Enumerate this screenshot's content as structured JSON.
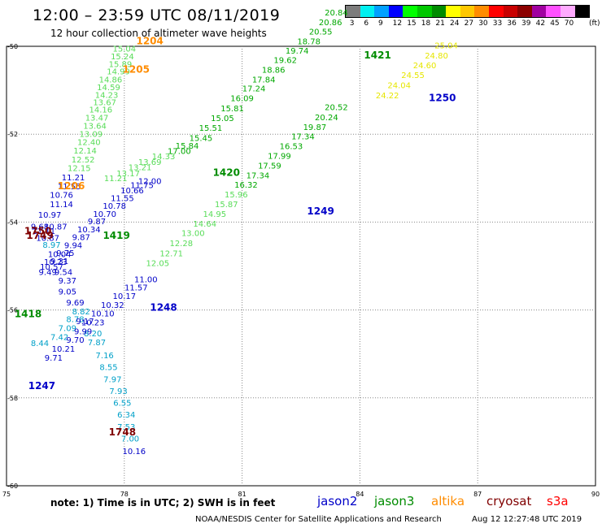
{
  "header": {
    "title": "12:00 – 23:59 UTC 08/11/2019",
    "subtitle": "12 hour collection of altimeter wave heights"
  },
  "legend": {
    "unit": "(ft)",
    "bins": [
      {
        "label": "3",
        "color": "#7c7c7c"
      },
      {
        "label": "6",
        "color": "#00f0f0"
      },
      {
        "label": "9",
        "color": "#00a0ff"
      },
      {
        "label": "12",
        "color": "#0000ff"
      },
      {
        "label": "15",
        "color": "#00ff00"
      },
      {
        "label": "18",
        "color": "#00c800"
      },
      {
        "label": "21",
        "color": "#008c00"
      },
      {
        "label": "24",
        "color": "#ffff00"
      },
      {
        "label": "27",
        "color": "#ffc800"
      },
      {
        "label": "30",
        "color": "#ff8c00"
      },
      {
        "label": "33",
        "color": "#ff0000"
      },
      {
        "label": "36",
        "color": "#c80000"
      },
      {
        "label": "39",
        "color": "#8c0000"
      },
      {
        "label": "42",
        "color": "#a000a0"
      },
      {
        "label": "45",
        "color": "#ff50ff"
      },
      {
        "label": "70",
        "color": "#ffaaff"
      },
      {
        "label": "",
        "color": "#000000"
      }
    ]
  },
  "map": {
    "lon_range": [
      75,
      90
    ],
    "lat_range": [
      -50,
      -60
    ],
    "x_ticks": [
      "75",
      "78",
      "81",
      "84",
      "87",
      "90"
    ],
    "y_ticks": [
      "-50",
      "-52",
      "-54",
      "-56",
      "-58",
      "-60"
    ],
    "grid": "dotted"
  },
  "colors": {
    "jason2": "#0000c8",
    "jason3": "#008c00",
    "altika": "#ff8c00",
    "cryosat": "#800000",
    "s3a": "#ff0000",
    "c6": "#00a0c8",
    "c12": "#0000c8",
    "c15": "#58dc58",
    "c18": "#00a800",
    "c24": "#e6e600",
    "label_j2": "#0000c8",
    "label_j3": "#008c00",
    "label_al": "#ff8c00",
    "label_cr": "#800000"
  },
  "observations": [
    {
      "v": "15.04",
      "lon": 78.0,
      "lat": -50.12,
      "c": "c15"
    },
    {
      "v": "15.24",
      "lon": 77.95,
      "lat": -50.3,
      "c": "c15"
    },
    {
      "v": "15.89",
      "lon": 77.9,
      "lat": -50.47,
      "c": "c15"
    },
    {
      "v": "14.99",
      "lon": 77.85,
      "lat": -50.64,
      "c": "c15"
    },
    {
      "v": "14.86",
      "lon": 77.65,
      "lat": -50.82,
      "c": "c15"
    },
    {
      "v": "14.59",
      "lon": 77.6,
      "lat": -51.0,
      "c": "c15"
    },
    {
      "v": "14.23",
      "lon": 77.55,
      "lat": -51.17,
      "c": "c15"
    },
    {
      "v": "13.67",
      "lon": 77.5,
      "lat": -51.34,
      "c": "c15"
    },
    {
      "v": "14.16",
      "lon": 77.4,
      "lat": -51.51,
      "c": "c15"
    },
    {
      "v": "13.47",
      "lon": 77.3,
      "lat": -51.69,
      "c": "c15"
    },
    {
      "v": "13.64",
      "lon": 77.25,
      "lat": -51.88,
      "c": "c15"
    },
    {
      "v": "13.09",
      "lon": 77.15,
      "lat": -52.06,
      "c": "c15"
    },
    {
      "v": "12.40",
      "lon": 77.1,
      "lat": -52.25,
      "c": "c15"
    },
    {
      "v": "12.14",
      "lon": 77.0,
      "lat": -52.44,
      "c": "c15"
    },
    {
      "v": "12.52",
      "lon": 76.95,
      "lat": -52.64,
      "c": "c15"
    },
    {
      "v": "12.15",
      "lon": 76.85,
      "lat": -52.84,
      "c": "c15"
    },
    {
      "v": "11.21",
      "lon": 76.7,
      "lat": -53.05,
      "c": "c12"
    },
    {
      "v": "11.55",
      "lon": 76.6,
      "lat": -53.25,
      "c": "c12"
    },
    {
      "v": "10.76",
      "lon": 76.4,
      "lat": -53.45,
      "c": "c12"
    },
    {
      "v": "11.14",
      "lon": 76.4,
      "lat": -53.66,
      "c": "c12"
    },
    {
      "v": "10.97",
      "lon": 76.1,
      "lat": -53.9,
      "c": "c12"
    },
    {
      "v": "9.68",
      "lon": 75.85,
      "lat": -54.17,
      "c": "c12"
    },
    {
      "v": "10.87",
      "lon": 76.25,
      "lat": -54.17,
      "c": "c12"
    },
    {
      "v": "11.11",
      "lon": 75.95,
      "lat": -54.27,
      "c": "c12"
    },
    {
      "v": "10.87",
      "lon": 76.05,
      "lat": -54.43,
      "c": "c12"
    },
    {
      "v": "8.97",
      "lon": 76.15,
      "lat": -54.58,
      "c": "c6"
    },
    {
      "v": "10.04",
      "lon": 76.35,
      "lat": -54.8,
      "c": "c12"
    },
    {
      "v": "10.23",
      "lon": 76.25,
      "lat": -54.97,
      "c": "c12"
    },
    {
      "v": "10.57",
      "lon": 76.15,
      "lat": -55.08,
      "c": "c12"
    },
    {
      "v": "9.49",
      "lon": 76.05,
      "lat": -55.2,
      "c": "c12"
    },
    {
      "v": "9.54",
      "lon": 76.45,
      "lat": -55.2,
      "c": "c12"
    },
    {
      "v": "9.37",
      "lon": 76.55,
      "lat": -55.4,
      "c": "c12"
    },
    {
      "v": "9.05",
      "lon": 76.55,
      "lat": -55.65,
      "c": "c12"
    },
    {
      "v": "9.69",
      "lon": 76.75,
      "lat": -55.9,
      "c": "c12"
    },
    {
      "v": "8.82",
      "lon": 76.9,
      "lat": -56.1,
      "c": "c6"
    },
    {
      "v": "8.78",
      "lon": 76.75,
      "lat": -56.28,
      "c": "c6"
    },
    {
      "v": "9.17",
      "lon": 77.0,
      "lat": -56.32,
      "c": "c12"
    },
    {
      "v": "7.09",
      "lon": 76.55,
      "lat": -56.48,
      "c": "c6"
    },
    {
      "v": "7.42",
      "lon": 76.35,
      "lat": -56.68,
      "c": "c6"
    },
    {
      "v": "8.44",
      "lon": 75.85,
      "lat": -56.82,
      "c": "c6"
    },
    {
      "v": "8.20",
      "lon": 77.2,
      "lat": -56.6,
      "c": "c6"
    },
    {
      "v": "7.87",
      "lon": 77.3,
      "lat": -56.8,
      "c": "c6"
    },
    {
      "v": "7.16",
      "lon": 77.5,
      "lat": -57.1,
      "c": "c6"
    },
    {
      "v": "8.55",
      "lon": 77.6,
      "lat": -57.37,
      "c": "c6"
    },
    {
      "v": "7.97",
      "lon": 77.7,
      "lat": -57.64,
      "c": "c6"
    },
    {
      "v": "7.93",
      "lon": 77.85,
      "lat": -57.91,
      "c": "c6"
    },
    {
      "v": "6.55",
      "lon": 77.95,
      "lat": -58.18,
      "c": "c6"
    },
    {
      "v": "6.34",
      "lon": 78.05,
      "lat": -58.45,
      "c": "c6"
    },
    {
      "v": "7.53",
      "lon": 78.05,
      "lat": -58.72,
      "c": "c6"
    },
    {
      "v": "7.00",
      "lon": 78.15,
      "lat": -58.99,
      "c": "c6"
    },
    {
      "v": "10.16",
      "lon": 78.25,
      "lat": -59.28,
      "c": "c12"
    },
    {
      "v": "11.21",
      "lon": 77.78,
      "lat": -53.07,
      "c": "c15"
    },
    {
      "v": "13.17",
      "lon": 78.1,
      "lat": -52.96,
      "c": "c15"
    },
    {
      "v": "13.21",
      "lon": 78.4,
      "lat": -52.82,
      "c": "c15"
    },
    {
      "v": "13.69",
      "lon": 78.65,
      "lat": -52.7,
      "c": "c15"
    },
    {
      "v": "14.33",
      "lon": 79.0,
      "lat": -52.57,
      "c": "c15"
    },
    {
      "v": "17.00",
      "lon": 79.4,
      "lat": -52.45,
      "c": "c18"
    },
    {
      "v": "15.84",
      "lon": 79.6,
      "lat": -52.33,
      "c": "c18"
    },
    {
      "v": "15.45",
      "lon": 79.95,
      "lat": -52.15,
      "c": "c18"
    },
    {
      "v": "15.51",
      "lon": 80.2,
      "lat": -51.92,
      "c": "c18"
    },
    {
      "v": "15.05",
      "lon": 80.5,
      "lat": -51.7,
      "c": "c18"
    },
    {
      "v": "15.81",
      "lon": 80.75,
      "lat": -51.48,
      "c": "c18"
    },
    {
      "v": "16.09",
      "lon": 81.0,
      "lat": -51.25,
      "c": "c18"
    },
    {
      "v": "17.24",
      "lon": 81.3,
      "lat": -51.03,
      "c": "c18"
    },
    {
      "v": "17.84",
      "lon": 81.55,
      "lat": -50.82,
      "c": "c18"
    },
    {
      "v": "18.86",
      "lon": 81.8,
      "lat": -50.6,
      "c": "c18"
    },
    {
      "v": "19.62",
      "lon": 82.1,
      "lat": -50.38,
      "c": "c18"
    },
    {
      "v": "19.74",
      "lon": 82.4,
      "lat": -50.17,
      "c": "c18"
    },
    {
      "v": "18.78",
      "lon": 82.7,
      "lat": -49.95,
      "c": "c18"
    },
    {
      "v": "20.55",
      "lon": 83.0,
      "lat": -49.73,
      "c": "c18"
    },
    {
      "v": "20.86",
      "lon": 83.25,
      "lat": -49.52,
      "c": "c18"
    },
    {
      "v": "20.84",
      "lon": 83.4,
      "lat": -49.3,
      "c": "c18"
    },
    {
      "v": "12.00",
      "lon": 78.65,
      "lat": -53.13,
      "c": "c12"
    },
    {
      "v": "11.75",
      "lon": 78.45,
      "lat": -53.23,
      "c": "c12"
    },
    {
      "v": "10.66",
      "lon": 78.2,
      "lat": -53.35,
      "c": "c12"
    },
    {
      "v": "11.55",
      "lon": 77.95,
      "lat": -53.52,
      "c": "c12"
    },
    {
      "v": "10.78",
      "lon": 77.75,
      "lat": -53.7,
      "c": "c12"
    },
    {
      "v": "10.70",
      "lon": 77.5,
      "lat": -53.88,
      "c": "c12"
    },
    {
      "v": "9.87",
      "lon": 77.3,
      "lat": -54.05,
      "c": "c12"
    },
    {
      "v": "10.34",
      "lon": 77.1,
      "lat": -54.23,
      "c": "c12"
    },
    {
      "v": "9.87",
      "lon": 76.9,
      "lat": -54.41,
      "c": "c12"
    },
    {
      "v": "9.94",
      "lon": 76.7,
      "lat": -54.59,
      "c": "c12"
    },
    {
      "v": "9.75",
      "lon": 76.5,
      "lat": -54.77,
      "c": "c12"
    },
    {
      "v": "9.31",
      "lon": 76.35,
      "lat": -54.95,
      "c": "c12"
    },
    {
      "v": "12.05",
      "lon": 78.85,
      "lat": -55.0,
      "c": "c15"
    },
    {
      "v": "12.71",
      "lon": 79.2,
      "lat": -54.78,
      "c": "c15"
    },
    {
      "v": "12.28",
      "lon": 79.45,
      "lat": -54.55,
      "c": "c15"
    },
    {
      "v": "13.00",
      "lon": 79.75,
      "lat": -54.32,
      "c": "c15"
    },
    {
      "v": "14.64",
      "lon": 80.05,
      "lat": -54.1,
      "c": "c15"
    },
    {
      "v": "14.95",
      "lon": 80.3,
      "lat": -53.88,
      "c": "c15"
    },
    {
      "v": "15.87",
      "lon": 80.6,
      "lat": -53.66,
      "c": "c15"
    },
    {
      "v": "15.96",
      "lon": 80.85,
      "lat": -53.44,
      "c": "c15"
    },
    {
      "v": "16.32",
      "lon": 81.1,
      "lat": -53.22,
      "c": "c18"
    },
    {
      "v": "17.34",
      "lon": 81.4,
      "lat": -53.0,
      "c": "c18"
    },
    {
      "v": "17.59",
      "lon": 81.7,
      "lat": -52.78,
      "c": "c18"
    },
    {
      "v": "17.99",
      "lon": 81.95,
      "lat": -52.56,
      "c": "c18"
    },
    {
      "v": "16.53",
      "lon": 82.25,
      "lat": -52.34,
      "c": "c18"
    },
    {
      "v": "17.34",
      "lon": 82.55,
      "lat": -52.12,
      "c": "c18"
    },
    {
      "v": "19.87",
      "lon": 82.85,
      "lat": -51.9,
      "c": "c18"
    },
    {
      "v": "20.24",
      "lon": 83.15,
      "lat": -51.68,
      "c": "c18"
    },
    {
      "v": "20.52",
      "lon": 83.4,
      "lat": -51.45,
      "c": "c18"
    },
    {
      "v": "11.00",
      "lon": 78.55,
      "lat": -55.37,
      "c": "c12"
    },
    {
      "v": "11.57",
      "lon": 78.3,
      "lat": -55.55,
      "c": "c12"
    },
    {
      "v": "10.17",
      "lon": 78.0,
      "lat": -55.75,
      "c": "c12"
    },
    {
      "v": "10.32",
      "lon": 77.7,
      "lat": -55.95,
      "c": "c12"
    },
    {
      "v": "10.10",
      "lon": 77.45,
      "lat": -56.15,
      "c": "c12"
    },
    {
      "v": "10.23",
      "lon": 77.2,
      "lat": -56.35,
      "c": "c12"
    },
    {
      "v": "9.99",
      "lon": 76.95,
      "lat": -56.55,
      "c": "c12"
    },
    {
      "v": "9.70",
      "lon": 76.75,
      "lat": -56.75,
      "c": "c12"
    },
    {
      "v": "10.21",
      "lon": 76.45,
      "lat": -56.95,
      "c": "c12"
    },
    {
      "v": "9.71",
      "lon": 76.2,
      "lat": -57.15,
      "c": "c12"
    },
    {
      "v": "24.22",
      "lon": 84.7,
      "lat": -51.18,
      "c": "c24"
    },
    {
      "v": "24.04",
      "lon": 85.0,
      "lat": -50.95,
      "c": "c24"
    },
    {
      "v": "24.55",
      "lon": 85.35,
      "lat": -50.72,
      "c": "c24"
    },
    {
      "v": "24.60",
      "lon": 85.65,
      "lat": -50.5,
      "c": "c24"
    },
    {
      "v": "24.80",
      "lon": 85.95,
      "lat": -50.28,
      "c": "c24"
    },
    {
      "v": "25.04",
      "lon": 86.2,
      "lat": -50.05,
      "c": "c24"
    }
  ],
  "track_labels": [
    {
      "t": "1204",
      "lon": 78.65,
      "lat": -49.95,
      "c": "label_al"
    },
    {
      "t": "1205",
      "lon": 78.3,
      "lat": -50.6,
      "c": "label_al"
    },
    {
      "t": "1206",
      "lon": 76.65,
      "lat": -53.25,
      "c": "label_al"
    },
    {
      "t": "1421",
      "lon": 84.45,
      "lat": -50.28,
      "c": "label_j3"
    },
    {
      "t": "1420",
      "lon": 80.6,
      "lat": -52.95,
      "c": "label_j3"
    },
    {
      "t": "1419",
      "lon": 77.8,
      "lat": -54.38,
      "c": "label_j3"
    },
    {
      "t": "1418",
      "lon": 75.55,
      "lat": -56.16,
      "c": "label_j3"
    },
    {
      "t": "1250",
      "lon": 86.1,
      "lat": -51.25,
      "c": "label_j2"
    },
    {
      "t": "1249",
      "lon": 83.0,
      "lat": -53.83,
      "c": "label_j2"
    },
    {
      "t": "1248",
      "lon": 79.0,
      "lat": -56.02,
      "c": "label_j2"
    },
    {
      "t": "1247",
      "lon": 75.9,
      "lat": -57.8,
      "c": "label_j2"
    },
    {
      "t": "1750",
      "lon": 75.8,
      "lat": -54.28,
      "c": "label_cr"
    },
    {
      "t": "1749",
      "lon": 75.85,
      "lat": -54.38,
      "c": "label_cr"
    },
    {
      "t": "1748",
      "lon": 77.95,
      "lat": -58.85,
      "c": "label_cr"
    }
  ],
  "footer": {
    "note": "note: 1) Time is in UTC; 2) SWH is in feet",
    "sat_jason2": "jason2",
    "sat_jason3": "jason3",
    "sat_altika": "altika",
    "sat_cryosat": "cryosat",
    "sat_s3a": "s3a",
    "credit": "NOAA/NESDIS Center for Satellite Applications and Research",
    "timestamp": "Aug 12 12:27:48 UTC 2019"
  }
}
